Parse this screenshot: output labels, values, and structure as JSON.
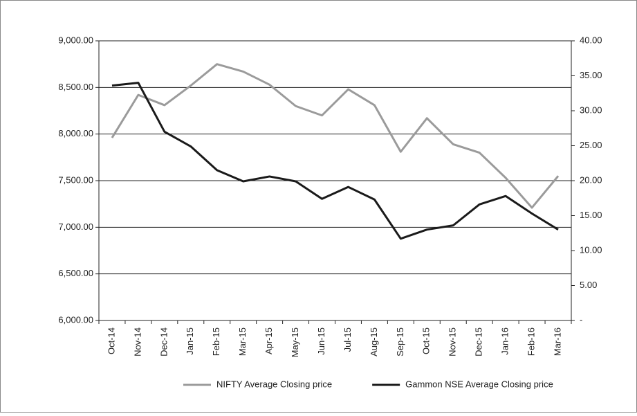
{
  "chart_data": {
    "type": "line",
    "categories": [
      "Oct-14",
      "Nov-14",
      "Dec-14",
      "Jan-15",
      "Feb-15",
      "Mar-15",
      "Apr-15",
      "May-15",
      "Jun-15",
      "Jul-15",
      "Aug-15",
      "Sep-15",
      "Oct-15",
      "Nov-15",
      "Dec-15",
      "Jan-16",
      "Feb-16",
      "Mar-16"
    ],
    "series": [
      {
        "name": "NIFTY Average Closing price",
        "color": "#9b9b9b",
        "values": [
          7960,
          8420,
          8310,
          8520,
          8750,
          8670,
          8530,
          8300,
          8200,
          8480,
          8310,
          7810,
          8170,
          7890,
          7800,
          7530,
          7210,
          7550
        ]
      },
      {
        "name": "Gammon NSE Average Closing price",
        "color": "#1a1a1a",
        "axis": "y2",
        "values": [
          33.6,
          34.0,
          27.0,
          24.9,
          21.5,
          19.9,
          20.6,
          19.9,
          17.4,
          19.1,
          17.3,
          11.7,
          13.0,
          13.6,
          16.6,
          17.8,
          15.3,
          13.0
        ]
      }
    ],
    "ylim": [
      6000,
      9000
    ],
    "yticks": [
      {
        "value": 6000,
        "label": "6,000.00"
      },
      {
        "value": 6500,
        "label": "6,500.00"
      },
      {
        "value": 7000,
        "label": "7,000.00"
      },
      {
        "value": 7500,
        "label": "7,500.00"
      },
      {
        "value": 8000,
        "label": "8,000.00"
      },
      {
        "value": 8500,
        "label": "8,500.00"
      },
      {
        "value": 9000,
        "label": "9,000.00"
      }
    ],
    "y2lim": [
      0,
      40
    ],
    "y2ticks": [
      {
        "value": 0,
        "label": "-"
      },
      {
        "value": 5,
        "label": "5.00"
      },
      {
        "value": 10,
        "label": "10.00"
      },
      {
        "value": 15,
        "label": "15.00"
      },
      {
        "value": 20,
        "label": "20.00"
      },
      {
        "value": 25,
        "label": "25.00"
      },
      {
        "value": 30,
        "label": "30.00"
      },
      {
        "value": 35,
        "label": "35.00"
      },
      {
        "value": 40,
        "label": "40.00"
      }
    ],
    "grid": true,
    "legend": "bottom"
  }
}
